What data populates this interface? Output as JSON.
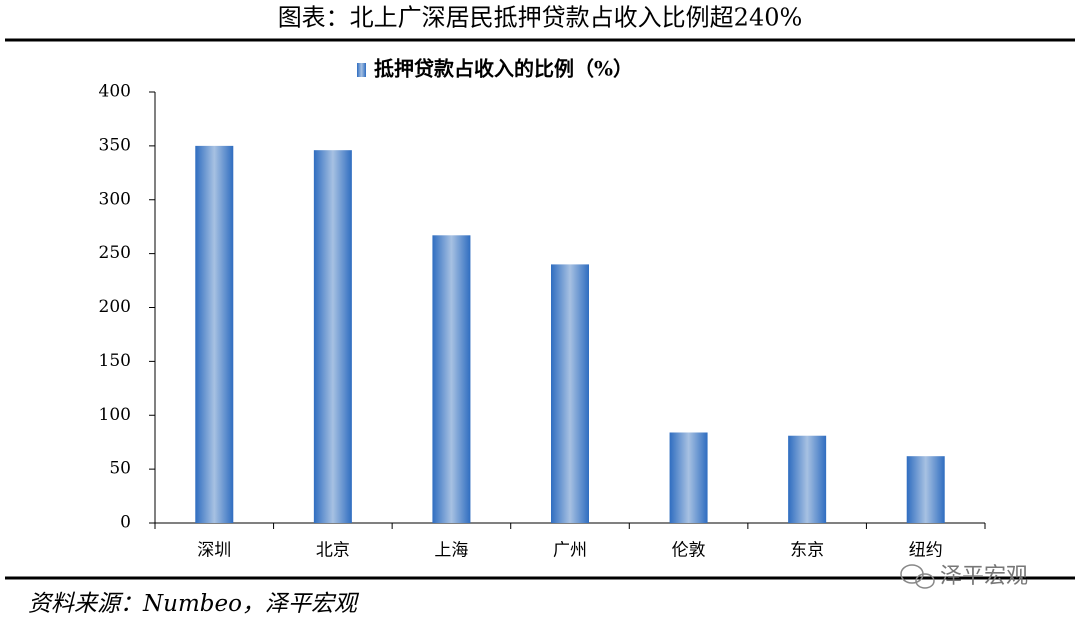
{
  "chart_data": {
    "type": "bar",
    "title": "图表：北上广深居民抵押贷款占收入比例超240%",
    "legend_label": "抵押贷款占收入的比例（%）",
    "categories": [
      "深圳",
      "北京",
      "上海",
      "广州",
      "伦敦",
      "东京",
      "纽约"
    ],
    "values": [
      350,
      346,
      267,
      240,
      84,
      81,
      62
    ],
    "color": "#2f6dc0",
    "ylim": [
      0,
      400
    ],
    "yticks": [
      0,
      50,
      100,
      150,
      200,
      250,
      300,
      350,
      400
    ],
    "grid": false,
    "source": "资料来源：Numbeo，泽平宏观",
    "watermark": "泽平宏观"
  }
}
